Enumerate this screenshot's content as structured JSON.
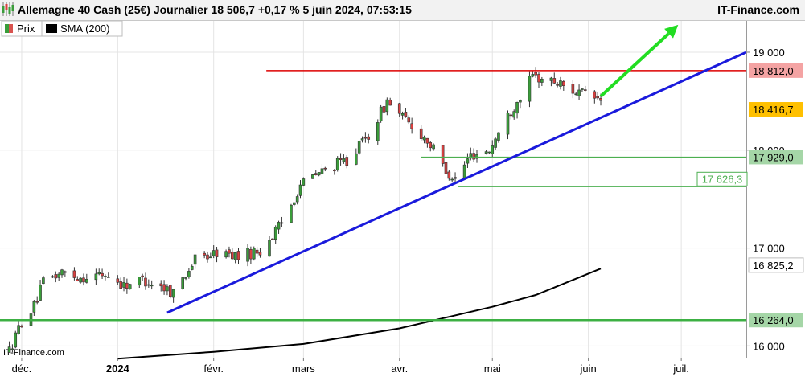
{
  "header": {
    "title": "Allemagne 40 Cash (25€) Journalier 18 506,7 +0,17 % 5 juin 2024, 07:53:15",
    "brand": "IT-Finance.com",
    "watermark": "IT-Finance.com"
  },
  "legend": [
    {
      "label": "Prix",
      "color": "#3a9d3a",
      "color2": "#d9534f"
    },
    {
      "label": "SMA (200)",
      "color": "#000000"
    }
  ],
  "chart_data": {
    "type": "candlestick",
    "title": "Allemagne 40 Cash (25€) Journalier 18 506,7 +0,17 % 5 juin 2024, 07:53:15",
    "x_range": [
      "2023-11-24",
      "2024-07-22"
    ],
    "ylim": [
      15880,
      19320
    ],
    "y_ticks": [
      {
        "value": 16000,
        "label": "16 000"
      },
      {
        "value": 17000,
        "label": "17 000"
      },
      {
        "value": 18000,
        "label": "18 000"
      },
      {
        "value": 19000,
        "label": "19 000"
      }
    ],
    "x_ticks": [
      {
        "date": "2023-12-01",
        "label": "déc.",
        "bold": false
      },
      {
        "date": "2024-01-01",
        "label": "2024",
        "bold": true
      },
      {
        "date": "2024-02-01",
        "label": "févr.",
        "bold": false
      },
      {
        "date": "2024-03-01",
        "label": "mars",
        "bold": false
      },
      {
        "date": "2024-04-01",
        "label": "avr.",
        "bold": false
      },
      {
        "date": "2024-05-01",
        "label": "mai",
        "bold": false
      },
      {
        "date": "2024-06-01",
        "label": "juin",
        "bold": false
      },
      {
        "date": "2024-07-01",
        "label": "juil.",
        "bold": false
      }
    ],
    "price_path": [
      [
        "2023-11-27",
        15950
      ],
      [
        "2023-12-01",
        16250
      ],
      [
        "2023-12-05",
        16400
      ],
      [
        "2023-12-08",
        16650
      ],
      [
        "2023-12-14",
        16750
      ],
      [
        "2023-12-20",
        16700
      ],
      [
        "2023-12-28",
        16730
      ],
      [
        "2024-01-03",
        16620
      ],
      [
        "2024-01-09",
        16680
      ],
      [
        "2024-01-15",
        16610
      ],
      [
        "2024-01-19",
        16550
      ],
      [
        "2024-01-26",
        16880
      ],
      [
        "2024-02-02",
        16950
      ],
      [
        "2024-02-09",
        16920
      ],
      [
        "2024-02-16",
        16970
      ],
      [
        "2024-02-23",
        17250
      ],
      [
        "2024-02-29",
        17650
      ],
      [
        "2024-03-08",
        17800
      ],
      [
        "2024-03-15",
        17900
      ],
      [
        "2024-03-22",
        18150
      ],
      [
        "2024-03-28",
        18500
      ],
      [
        "2024-04-03",
        18300
      ],
      [
        "2024-04-10",
        18100
      ],
      [
        "2024-04-16",
        17800
      ],
      [
        "2024-04-19",
        17700
      ],
      [
        "2024-04-24",
        17950
      ],
      [
        "2024-04-30",
        18000
      ],
      [
        "2024-05-06",
        18350
      ],
      [
        "2024-05-14",
        18750
      ],
      [
        "2024-05-21",
        18700
      ],
      [
        "2024-05-28",
        18600
      ],
      [
        "2024-06-05",
        18506
      ]
    ],
    "sma_200": [
      [
        "2024-01-01",
        15870
      ],
      [
        "2024-02-01",
        15940
      ],
      [
        "2024-03-01",
        16020
      ],
      [
        "2024-04-01",
        16180
      ],
      [
        "2024-05-01",
        16400
      ],
      [
        "2024-05-15",
        16520
      ],
      [
        "2024-06-05",
        16790
      ]
    ],
    "levels": [
      {
        "value": 18812.0,
        "label": "18 812,0",
        "line_color": "#dd0000",
        "bg": "#f4a3a3",
        "text_color": "#000000",
        "from": "2024-02-18",
        "to": "2024-07-22"
      },
      {
        "value": 18416.7,
        "label": "18 416,7",
        "line_color": "none",
        "bg": "#ffc000",
        "text_color": "#000000",
        "from": "",
        "to": ""
      },
      {
        "value": 17929.0,
        "label": "17 929,0",
        "line_color": "#4caf50",
        "bg": "#a5d6a7",
        "text_color": "#000000",
        "from": "2024-04-08",
        "to": "2024-07-22"
      },
      {
        "value": 17626.3,
        "label": "17 626,3",
        "line_color": "#4caf50",
        "bg": "#ffffff",
        "text_color": "#4caf50",
        "from": "2024-04-20",
        "to": "2024-07-22"
      },
      {
        "value": 16825.2,
        "label": "16 825,2",
        "line_color": "none",
        "bg": "#ffffff",
        "text_color": "#000000",
        "from": "",
        "to": ""
      },
      {
        "value": 16264.0,
        "label": "16 264,0",
        "line_color": "#3cb043",
        "bg": "#a5d6a7",
        "text_color": "#000000",
        "from": "2023-11-24",
        "to": "2024-07-22"
      }
    ],
    "trendline": {
      "color": "#1a1adc",
      "points": [
        [
          "2024-01-17",
          16340
        ],
        [
          "2024-07-22",
          19000
        ]
      ]
    },
    "arrow": {
      "color": "#22dd22",
      "points": [
        [
          "2024-06-05",
          18550
        ],
        [
          "2024-06-30",
          19280
        ]
      ]
    }
  }
}
